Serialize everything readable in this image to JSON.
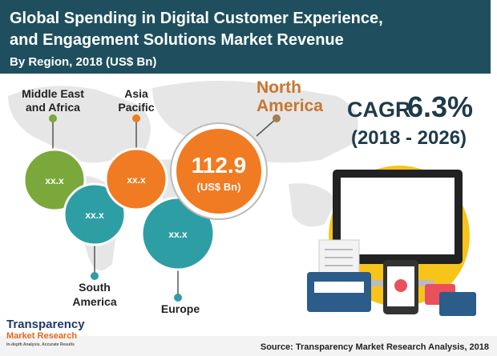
{
  "header": {
    "title_line1": "Global Spending in Digital Customer Experience,",
    "title_line2": "and Engagement Solutions Market Revenue",
    "subtitle": "By Region, 2018 (US$ Bn)"
  },
  "regions": [
    {
      "label_lines": [
        "Middle East",
        "and Africa"
      ],
      "value": "xx.x"
    },
    {
      "label_lines": [
        "South",
        "America"
      ],
      "value": "xx.x"
    },
    {
      "label_lines": [
        "Asia",
        "Pacific"
      ],
      "value": "xx.x"
    },
    {
      "label_lines": [
        "North",
        "America"
      ],
      "value": "112.9",
      "unit": "(US$ Bn)"
    },
    {
      "label_lines": [
        "Europe"
      ],
      "value": "xx.x"
    }
  ],
  "cagr": {
    "label": "CAGR",
    "value": "6.3%",
    "period": "(2018 - 2026)"
  },
  "footer": {
    "logo_line1": "Transparency",
    "logo_line2": "Market Research",
    "logo_tagline": "In-depth Analysis. Accurate Results",
    "source": "Source: Transparency Market Research Analysis, 2018"
  }
}
